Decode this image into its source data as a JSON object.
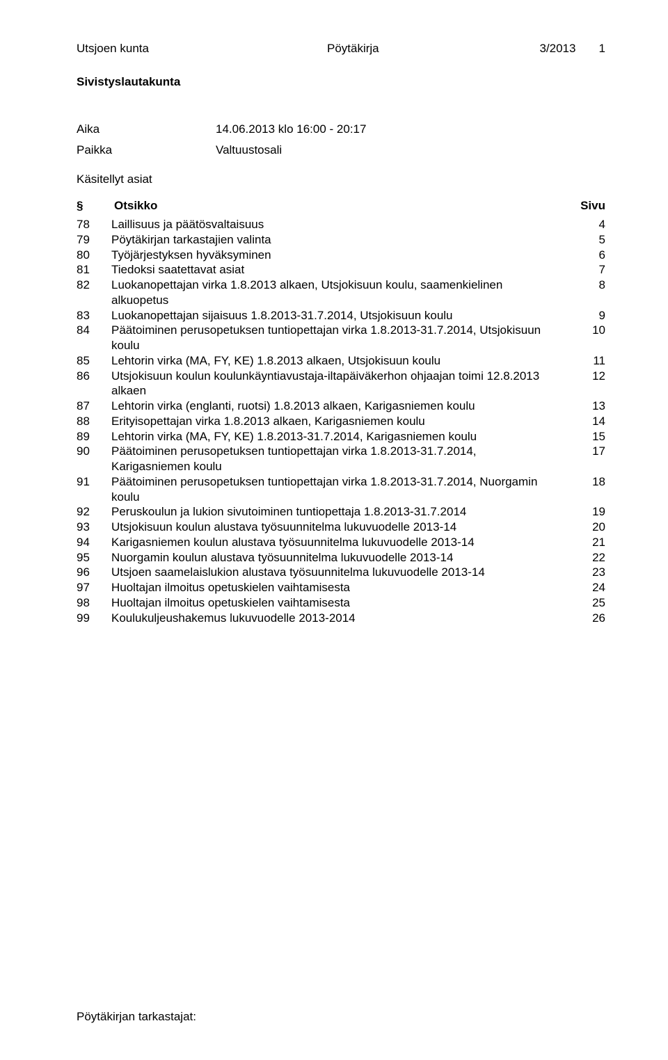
{
  "header": {
    "municipality": "Utsjoen kunta",
    "doc_type": "Pöytäkirja",
    "doc_id": "3/2013",
    "page_number": "1",
    "board": "Sivistyslautakunta"
  },
  "meta": {
    "aika_label": "Aika",
    "aika_value": "14.06.2013 klo 16:00 - 20:17",
    "paikka_label": "Paikka",
    "paikka_value": "Valtuustosali",
    "heading": "Käsitellyt asiat"
  },
  "toc_header": {
    "num": "§",
    "title": "Otsikko",
    "page": "Sivu"
  },
  "items": [
    {
      "num": "78",
      "title": "Laillisuus ja päätösvaltaisuus",
      "page": "4"
    },
    {
      "num": "79",
      "title": "Pöytäkirjan tarkastajien valinta",
      "page": "5"
    },
    {
      "num": "80",
      "title": "Työjärjestyksen hyväksyminen",
      "page": "6"
    },
    {
      "num": "81",
      "title": "Tiedoksi saatettavat asiat",
      "page": "7"
    },
    {
      "num": "82",
      "title": "Luokanopettajan virka 1.8.2013 alkaen, Utsjokisuun koulu, saamenkielinen alkuopetus",
      "page": "8"
    },
    {
      "num": "83",
      "title": "Luokanopettajan sijaisuus 1.8.2013-31.7.2014, Utsjokisuun koulu",
      "page": "9"
    },
    {
      "num": "84",
      "title": "Päätoiminen perusopetuksen tuntiopettajan virka 1.8.2013-31.7.2014, Utsjokisuun koulu",
      "page": "10"
    },
    {
      "num": "85",
      "title": "Lehtorin virka (MA, FY, KE) 1.8.2013 alkaen, Utsjokisuun koulu",
      "page": "11"
    },
    {
      "num": "86",
      "title": "Utsjokisuun koulun koulunkäyntiavustaja-iltapäiväkerhon ohjaajan toimi 12.8.2013 alkaen",
      "page": "12"
    },
    {
      "num": "87",
      "title": "Lehtorin virka (englanti, ruotsi) 1.8.2013 alkaen, Karigasniemen koulu",
      "page": "13"
    },
    {
      "num": "88",
      "title": "Erityisopettajan virka 1.8.2013 alkaen, Karigasniemen koulu",
      "page": "14"
    },
    {
      "num": "89",
      "title": "Lehtorin virka (MA, FY, KE) 1.8.2013-31.7.2014, Karigasniemen koulu",
      "page": "15"
    },
    {
      "num": "90",
      "title": "Päätoiminen perusopetuksen tuntiopettajan virka 1.8.2013-31.7.2014, Karigasniemen koulu",
      "page": "17"
    },
    {
      "num": "91",
      "title": "Päätoiminen perusopetuksen tuntiopettajan virka 1.8.2013-31.7.2014, Nuorgamin koulu",
      "page": "18"
    },
    {
      "num": "92",
      "title": "Peruskoulun ja lukion sivutoiminen tuntiopettaja 1.8.2013-31.7.2014",
      "page": "19"
    },
    {
      "num": "93",
      "title": "Utsjokisuun koulun alustava työsuunnitelma lukuvuodelle 2013-14",
      "page": "20"
    },
    {
      "num": "94",
      "title": "Karigasniemen koulun alustava työsuunnitelma lukuvuodelle 2013-14",
      "page": "21"
    },
    {
      "num": "95",
      "title": "Nuorgamin koulun alustava työsuunnitelma lukuvuodelle 2013-14",
      "page": "22"
    },
    {
      "num": "96",
      "title": "Utsjoen saamelaislukion alustava työsuunnitelma lukuvuodelle 2013-14",
      "page": "23"
    },
    {
      "num": "97",
      "title": "Huoltajan ilmoitus opetuskielen vaihtamisesta",
      "page": "24"
    },
    {
      "num": "98",
      "title": "Huoltajan ilmoitus opetuskielen vaihtamisesta",
      "page": "25"
    },
    {
      "num": "99",
      "title": "Koulukuljeushakemus lukuvuodelle 2013-2014",
      "page": "26"
    }
  ],
  "footer": {
    "text": "Pöytäkirjan tarkastajat:"
  }
}
